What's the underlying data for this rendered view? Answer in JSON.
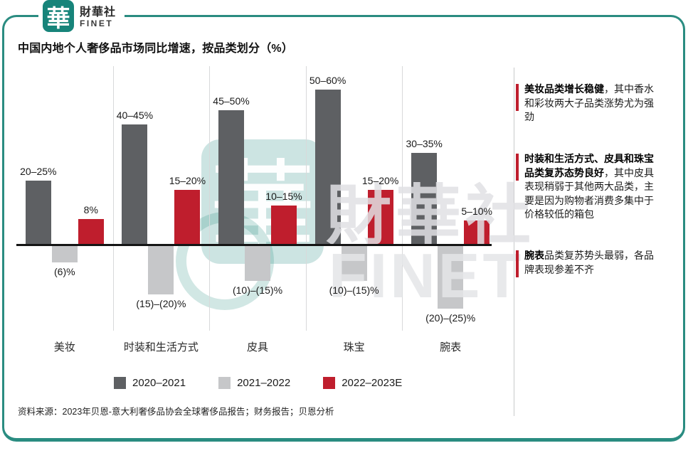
{
  "brand": {
    "logo_char": "華",
    "name_zh": "財華社",
    "name_en": "FINET"
  },
  "title": "中国内地个人奢侈品市场同比增速，按品类划分（%）",
  "chart_data": {
    "type": "bar",
    "title": "中国内地个人奢侈品市场同比增速，按品类划分（%）",
    "unit": "%",
    "baseline": 0,
    "grid": "vertical-category-separators",
    "legend_position": "bottom",
    "categories": [
      "美妆",
      "时装和生活方式",
      "皮具",
      "珠宝",
      "腕表"
    ],
    "series": [
      {
        "name": "2020–2021",
        "color": "#5e6063",
        "values": [
          22.5,
          42.5,
          47.5,
          55,
          32.5
        ],
        "labels": [
          "20–25%",
          "40–45%",
          "45–50%",
          "50–60%",
          "30–35%"
        ]
      },
      {
        "name": "2021–2022",
        "color": "#c6c7c9",
        "values": [
          -6,
          -17.5,
          -12.5,
          -12.5,
          -22.5
        ],
        "labels": [
          "(6)%",
          "(15)–(20)%",
          "(10)–(15)%",
          "(10)–(15)%",
          "(20)–(25)%"
        ]
      },
      {
        "name": "2022–2023E",
        "color": "#bf1e2d",
        "values": [
          8,
          17.5,
          12.5,
          17.5,
          7.5
        ],
        "labels": [
          "8%",
          "15–20%",
          "10–15%",
          "15–20%",
          "5–10%"
        ]
      }
    ]
  },
  "annotations": [
    {
      "bold": "美妆品类增长稳健",
      "text": "，其中香水和彩妆两大子品类涨势尤为强劲"
    },
    {
      "bold": "时装和生活方式、皮具和珠宝品类复苏态势良好",
      "text": "，其中皮具表现稍弱于其他两大品类，主要是因为购物者消费多集中于价格较低的箱包"
    },
    {
      "bold": "腕表",
      "text": "品类复苏势头最弱，各品牌表现参差不齐"
    }
  ],
  "source": "资料来源：2023年贝恩-意大利奢侈品协会全球奢侈品报告；财务报告；贝恩分析",
  "watermark": {
    "stamp_char": "華",
    "text_zh": "財華社",
    "text_en": "FINET"
  },
  "colors": {
    "teal": "#17847a",
    "frame": "#2a8c81",
    "dark_gray": "#5e6063",
    "light_gray": "#c6c7c9",
    "red": "#bf1e2d",
    "axis": "#151515",
    "gridline": "#d8d9da",
    "annotation_accent": "#bf1e2d"
  }
}
